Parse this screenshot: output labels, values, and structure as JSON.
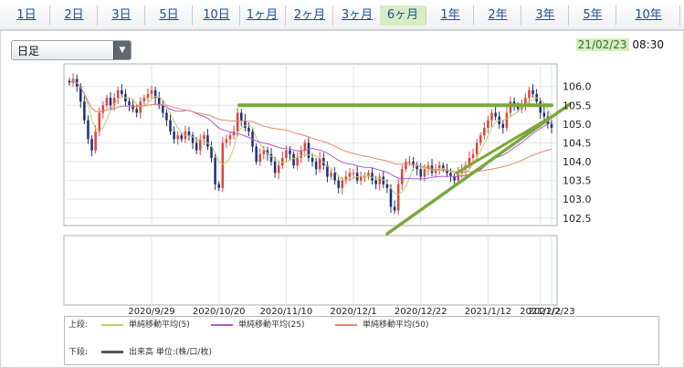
{
  "tabs": [
    {
      "label": "1日",
      "active": false
    },
    {
      "label": "2日",
      "active": false
    },
    {
      "label": "3日",
      "active": false
    },
    {
      "label": "5日",
      "active": false
    },
    {
      "label": "10日",
      "active": false
    },
    {
      "label": "1ヶ月",
      "active": false
    },
    {
      "label": "2ヶ月",
      "active": false
    },
    {
      "label": "3ヶ月",
      "active": false
    },
    {
      "label": "6ヶ月",
      "active": true
    },
    {
      "label": "1年",
      "active": false
    },
    {
      "label": "2年",
      "active": false
    },
    {
      "label": "3年",
      "active": false
    },
    {
      "label": "5年",
      "active": false
    },
    {
      "label": "10年",
      "active": false
    }
  ],
  "controls": {
    "interval_value": "日足",
    "date": "21/02/23",
    "time": "08:30"
  },
  "colors": {
    "up": "#e0453a",
    "down": "#1f2f7a",
    "ma5": "#b9cf6a",
    "ma25": "#a85fd0",
    "ma50": "#e48a6a",
    "annotation": "#7aa83a",
    "tab_active_bg": "#d8ecc4"
  },
  "chart_data": {
    "type": "candlestick",
    "x_tick_labels": [
      "2020/9/29",
      "2020/10/20",
      "2020/11/10",
      "2020/12/1",
      "2020/12/22",
      "2021/1/12",
      "2021/2/2",
      "2021/2/23"
    ],
    "y_ticks": [
      102.5,
      103.0,
      103.5,
      104.0,
      104.5,
      105.0,
      105.5,
      106.0
    ],
    "ylim": [
      102.3,
      106.6
    ],
    "grid": true,
    "closes": [
      106.1,
      106.2,
      106.0,
      105.6,
      105.1,
      104.6,
      104.3,
      104.8,
      105.3,
      105.5,
      105.7,
      105.5,
      105.7,
      105.9,
      105.8,
      105.6,
      105.5,
      105.4,
      105.3,
      105.6,
      105.7,
      105.8,
      105.9,
      105.7,
      105.5,
      105.3,
      105.1,
      104.8,
      104.6,
      104.7,
      104.6,
      104.8,
      104.7,
      104.5,
      104.3,
      104.6,
      104.7,
      104.4,
      104.1,
      103.4,
      103.3,
      104.5,
      104.6,
      104.7,
      104.8,
      105.3,
      105.1,
      104.9,
      104.8,
      104.4,
      104.0,
      104.2,
      104.3,
      104.2,
      104.0,
      103.7,
      103.9,
      104.1,
      104.3,
      104.2,
      103.9,
      104.1,
      104.3,
      104.5,
      104.1,
      104.0,
      103.8,
      104.1,
      103.9,
      103.6,
      103.7,
      103.5,
      103.3,
      103.5,
      103.6,
      103.7,
      103.7,
      103.5,
      103.6,
      103.6,
      103.7,
      103.5,
      103.4,
      103.6,
      103.4,
      103.3,
      102.8,
      102.7,
      103.4,
      103.8,
      104.0,
      104.0,
      103.9,
      103.8,
      103.6,
      103.8,
      103.9,
      103.7,
      103.8,
      103.9,
      103.8,
      103.7,
      103.6,
      103.5,
      103.7,
      103.8,
      103.9,
      104.1,
      104.2,
      104.5,
      104.7,
      104.9,
      105.1,
      105.3,
      105.2,
      105.0,
      104.9,
      105.3,
      105.6,
      105.5,
      105.4,
      105.5,
      105.7,
      105.9,
      105.8,
      105.6,
      105.3,
      105.2,
      105.0,
      104.9
    ],
    "series": [
      {
        "name": "単純移動平均(5)"
      },
      {
        "name": "単純移動平均(25)"
      },
      {
        "name": "単純移動平均(50)"
      }
    ],
    "lower_panel": "出来高"
  },
  "legend": {
    "upper_label": "上段:",
    "lower_label": "下段:",
    "lower_item": "出来高 単位:(株/口/枚)"
  }
}
